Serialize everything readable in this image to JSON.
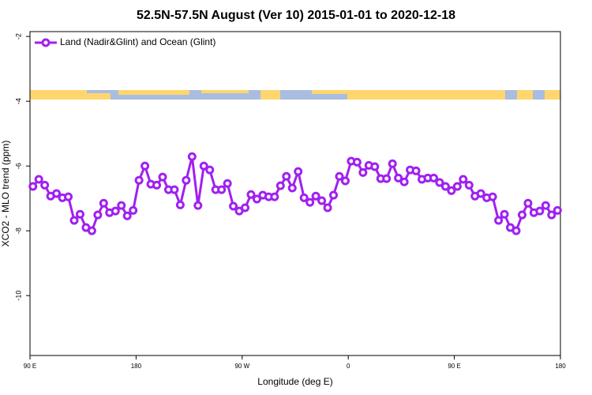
{
  "chart_data": {
    "type": "line",
    "title": "52.5N-57.5N August (Ver 10)   2015-01-01 to 2020-12-18",
    "x_label": "Longitude (deg E)",
    "y_label": "XCO2 - MLO trend (ppm)",
    "xlim": [
      90,
      540
    ],
    "xticks": [
      {
        "value": 90,
        "label": "90 E"
      },
      180,
      {
        "value": 270,
        "label": "90 W"
      },
      {
        "value": 360,
        "label": "0"
      },
      {
        "value": 450,
        "label": "90 E"
      },
      {
        "value": 540,
        "label": "180"
      }
    ],
    "ylim": [
      -11.85,
      -1.85
    ],
    "yticks": [
      -2,
      -4,
      -6,
      -8,
      -10
    ],
    "legend": "upper left",
    "x": [
      92.5,
      97.5,
      102.5,
      107.5,
      112.5,
      117.5,
      122.5,
      127.5,
      132.5,
      137.5,
      142.5,
      147.5,
      152.5,
      157.5,
      162.5,
      167.5,
      172.5,
      177.5,
      182.5,
      187.5,
      192.5,
      197.5,
      202.5,
      207.5,
      212.5,
      217.5,
      222.5,
      227.5,
      232.5,
      237.5,
      242.5,
      247.5,
      252.5,
      257.5,
      262.5,
      267.5,
      272.5,
      277.5,
      282.5,
      287.5,
      292.5,
      297.5,
      302.5,
      307.5,
      312.5,
      317.5,
      322.5,
      327.5,
      332.5,
      337.5,
      342.5,
      347.5,
      352.5,
      357.5,
      362.5,
      367.5,
      372.5,
      377.5,
      382.5,
      387.5,
      392.5,
      397.5,
      402.5,
      407.5,
      412.5,
      417.5,
      422.5,
      427.5,
      432.5,
      437.5,
      442.5,
      447.5,
      452.5,
      457.5,
      462.5,
      467.5,
      472.5,
      477.5,
      482.5,
      487.5,
      492.5,
      497.5,
      502.5,
      507.5,
      512.5,
      517.5,
      522.5,
      527.5,
      532.5,
      537.5
    ],
    "series": [
      {
        "name": "Land (Nadir&Glint) and Ocean (Glint)",
        "color": "#a020f0",
        "values": [
          -6.63,
          -6.41,
          -6.59,
          -6.93,
          -6.85,
          -6.98,
          -6.95,
          -7.68,
          -7.49,
          -7.9,
          -8.0,
          -7.51,
          -7.15,
          -7.44,
          -7.39,
          -7.22,
          -7.54,
          -7.37,
          -6.44,
          -6.0,
          -6.56,
          -6.59,
          -6.34,
          -6.73,
          -6.73,
          -7.2,
          -6.44,
          -5.71,
          -7.22,
          -6.0,
          -6.12,
          -6.73,
          -6.73,
          -6.54,
          -7.24,
          -7.39,
          -7.29,
          -6.88,
          -7.02,
          -6.9,
          -6.95,
          -6.95,
          -6.61,
          -6.32,
          -6.68,
          -6.17,
          -6.98,
          -7.12,
          -6.93,
          -7.07,
          -7.29,
          -6.9,
          -6.32,
          -6.46,
          -5.85,
          -5.88,
          -6.2,
          -5.98,
          -6.02,
          -6.39,
          -6.39,
          -5.93,
          -6.37,
          -6.49,
          -6.12,
          -6.15,
          -6.41,
          -6.37,
          -6.37,
          -6.51,
          -6.63,
          -6.76,
          -6.63,
          -6.41,
          -6.59,
          -6.93,
          -6.85,
          -6.98,
          -6.95,
          -7.68,
          -7.49,
          -7.9,
          -8.0,
          -7.51,
          -7.15,
          -7.44,
          -7.39,
          -7.22,
          -7.51,
          -7.37
        ]
      }
    ]
  }
}
